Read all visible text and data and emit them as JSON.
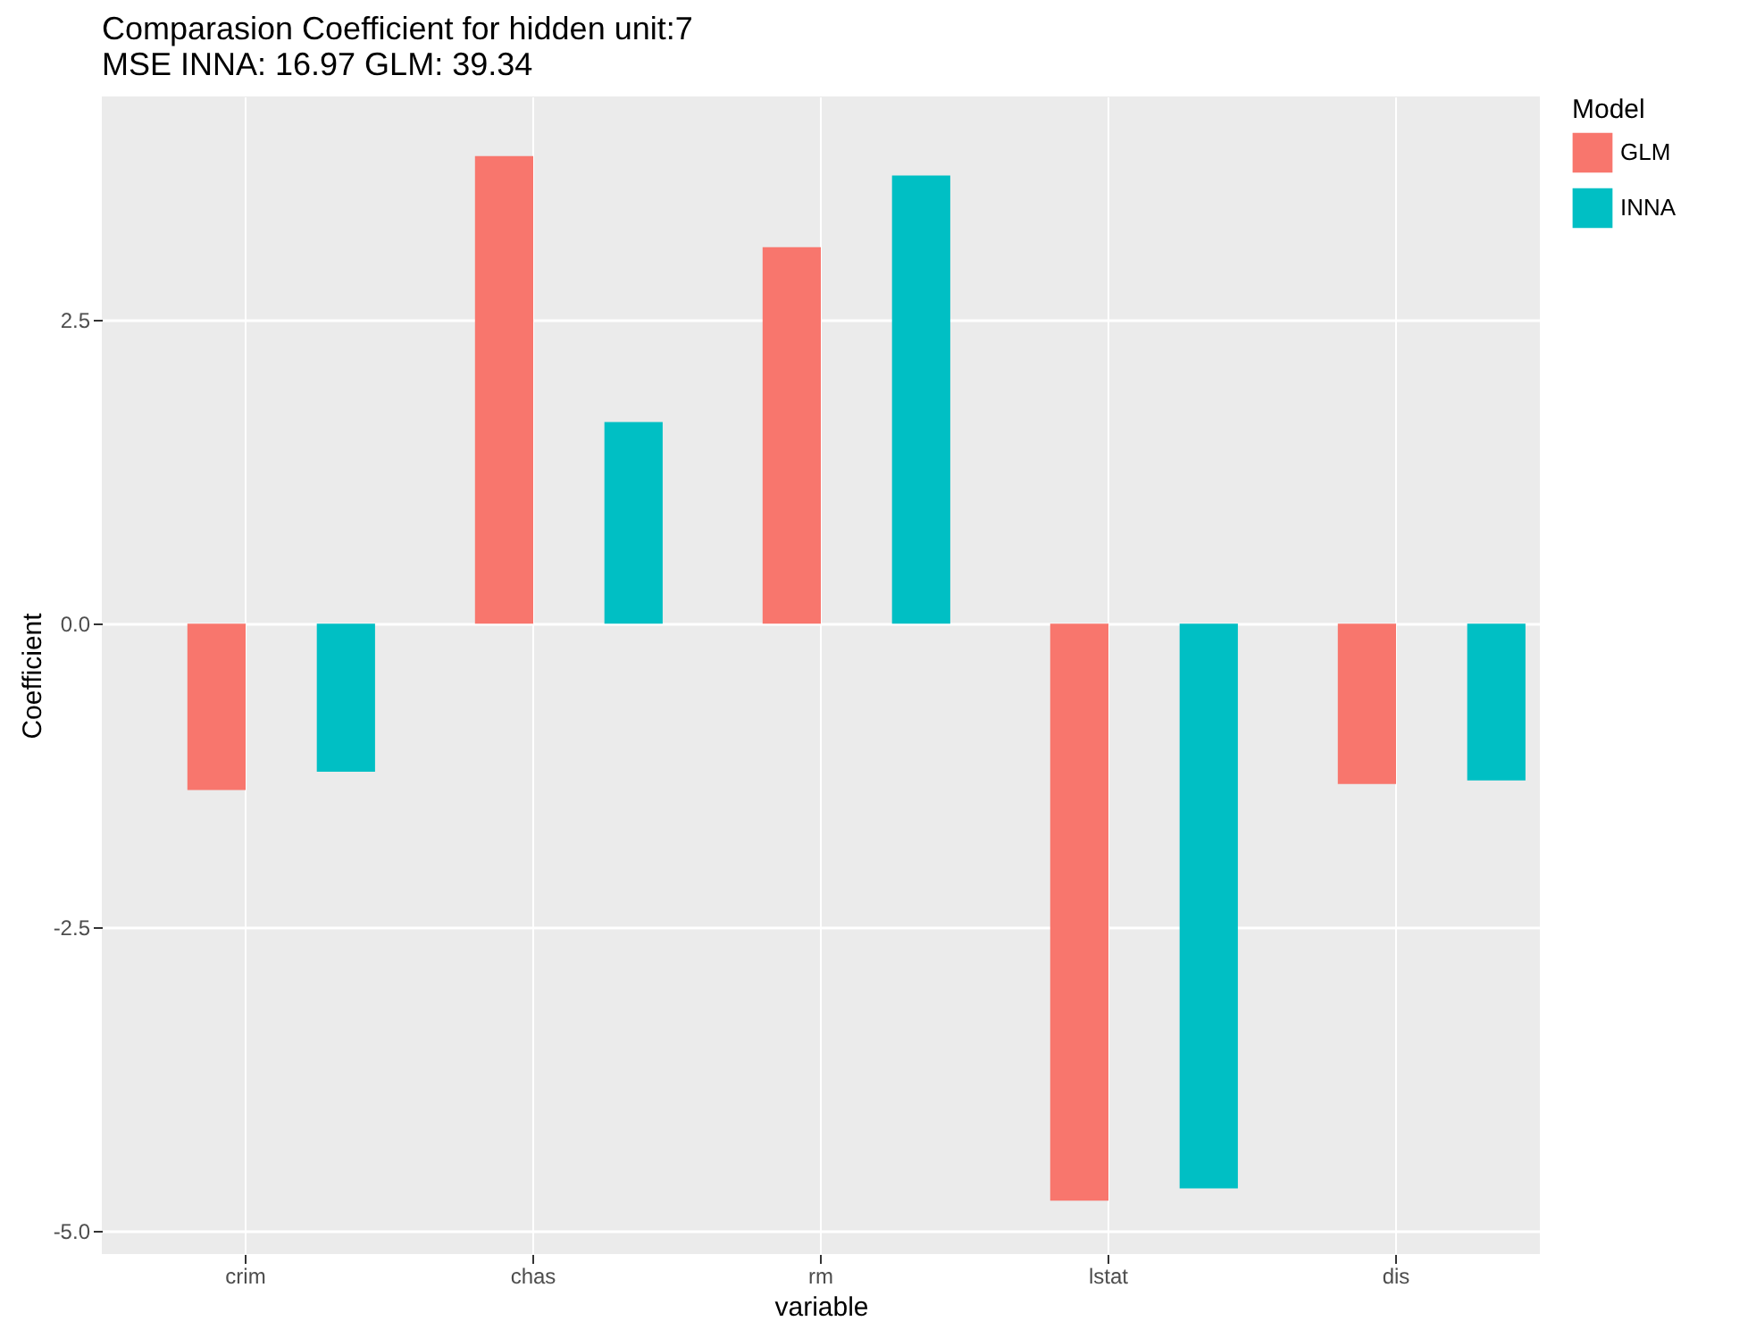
{
  "chart_data": {
    "type": "bar",
    "title": "Comparasion Coefficient for hidden unit:7",
    "subtitle": "MSE INNA: 16.97 GLM: 39.34",
    "xlabel": "variable",
    "ylabel": "Coefficient",
    "legend_title": "Model",
    "categories": [
      "crim",
      "chas",
      "rm",
      "lstat",
      "dis"
    ],
    "series": [
      {
        "name": "GLM",
        "color": "#f8766d",
        "values": [
          -1.37,
          3.85,
          3.1,
          -4.75,
          -1.32
        ]
      },
      {
        "name": "INNA",
        "color": "#00bfc4",
        "values": [
          -1.22,
          1.66,
          3.69,
          -4.65,
          -1.29
        ]
      }
    ],
    "ylim": [
      -5.19,
      4.34
    ],
    "yticks": [
      {
        "value": -5,
        "label": "-5.0"
      },
      {
        "value": -2.5,
        "label": "-2.5"
      },
      {
        "value": 0,
        "label": "0.0"
      },
      2.5
    ],
    "grid": true,
    "legend": "right"
  }
}
